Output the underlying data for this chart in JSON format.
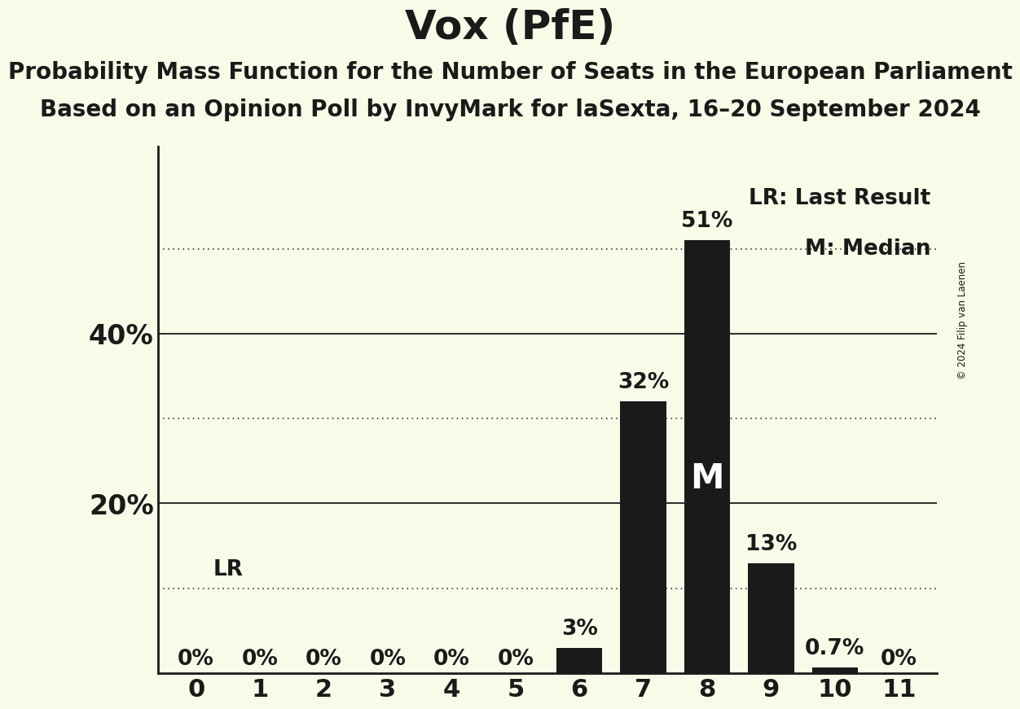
{
  "title": "Vox (PfE)",
  "subtitle1": "Probability Mass Function for the Number of Seats in the European Parliament",
  "subtitle2": "Based on an Opinion Poll by InvyMark for laSexta, 16–20 September 2024",
  "copyright": "© 2024 Filip van Laenen",
  "categories": [
    0,
    1,
    2,
    3,
    4,
    5,
    6,
    7,
    8,
    9,
    10,
    11
  ],
  "values": [
    0,
    0,
    0,
    0,
    0,
    0,
    3,
    32,
    51,
    13,
    0.7,
    0
  ],
  "bar_color": "#1a1a1a",
  "background_color": "#fafae8",
  "solid_yticks": [
    20,
    40
  ],
  "solid_ylabel": [
    "20%",
    "40%"
  ],
  "dotted_gridlines": [
    10,
    30,
    50
  ],
  "median_seat": 8,
  "lr_level": 10,
  "legend_lr": "LR: Last Result",
  "legend_m": "M: Median",
  "bar_labels": [
    "0%",
    "0%",
    "0%",
    "0%",
    "0%",
    "0%",
    "3%",
    "32%",
    "51%",
    "13%",
    "0.7%",
    "0%"
  ],
  "ylim": [
    0,
    62
  ],
  "title_fontsize": 36,
  "subtitle_fontsize": 20,
  "bar_label_fontsize": 19,
  "axis_tick_fontsize": 22,
  "ytick_fontsize": 24,
  "legend_fontsize": 19
}
